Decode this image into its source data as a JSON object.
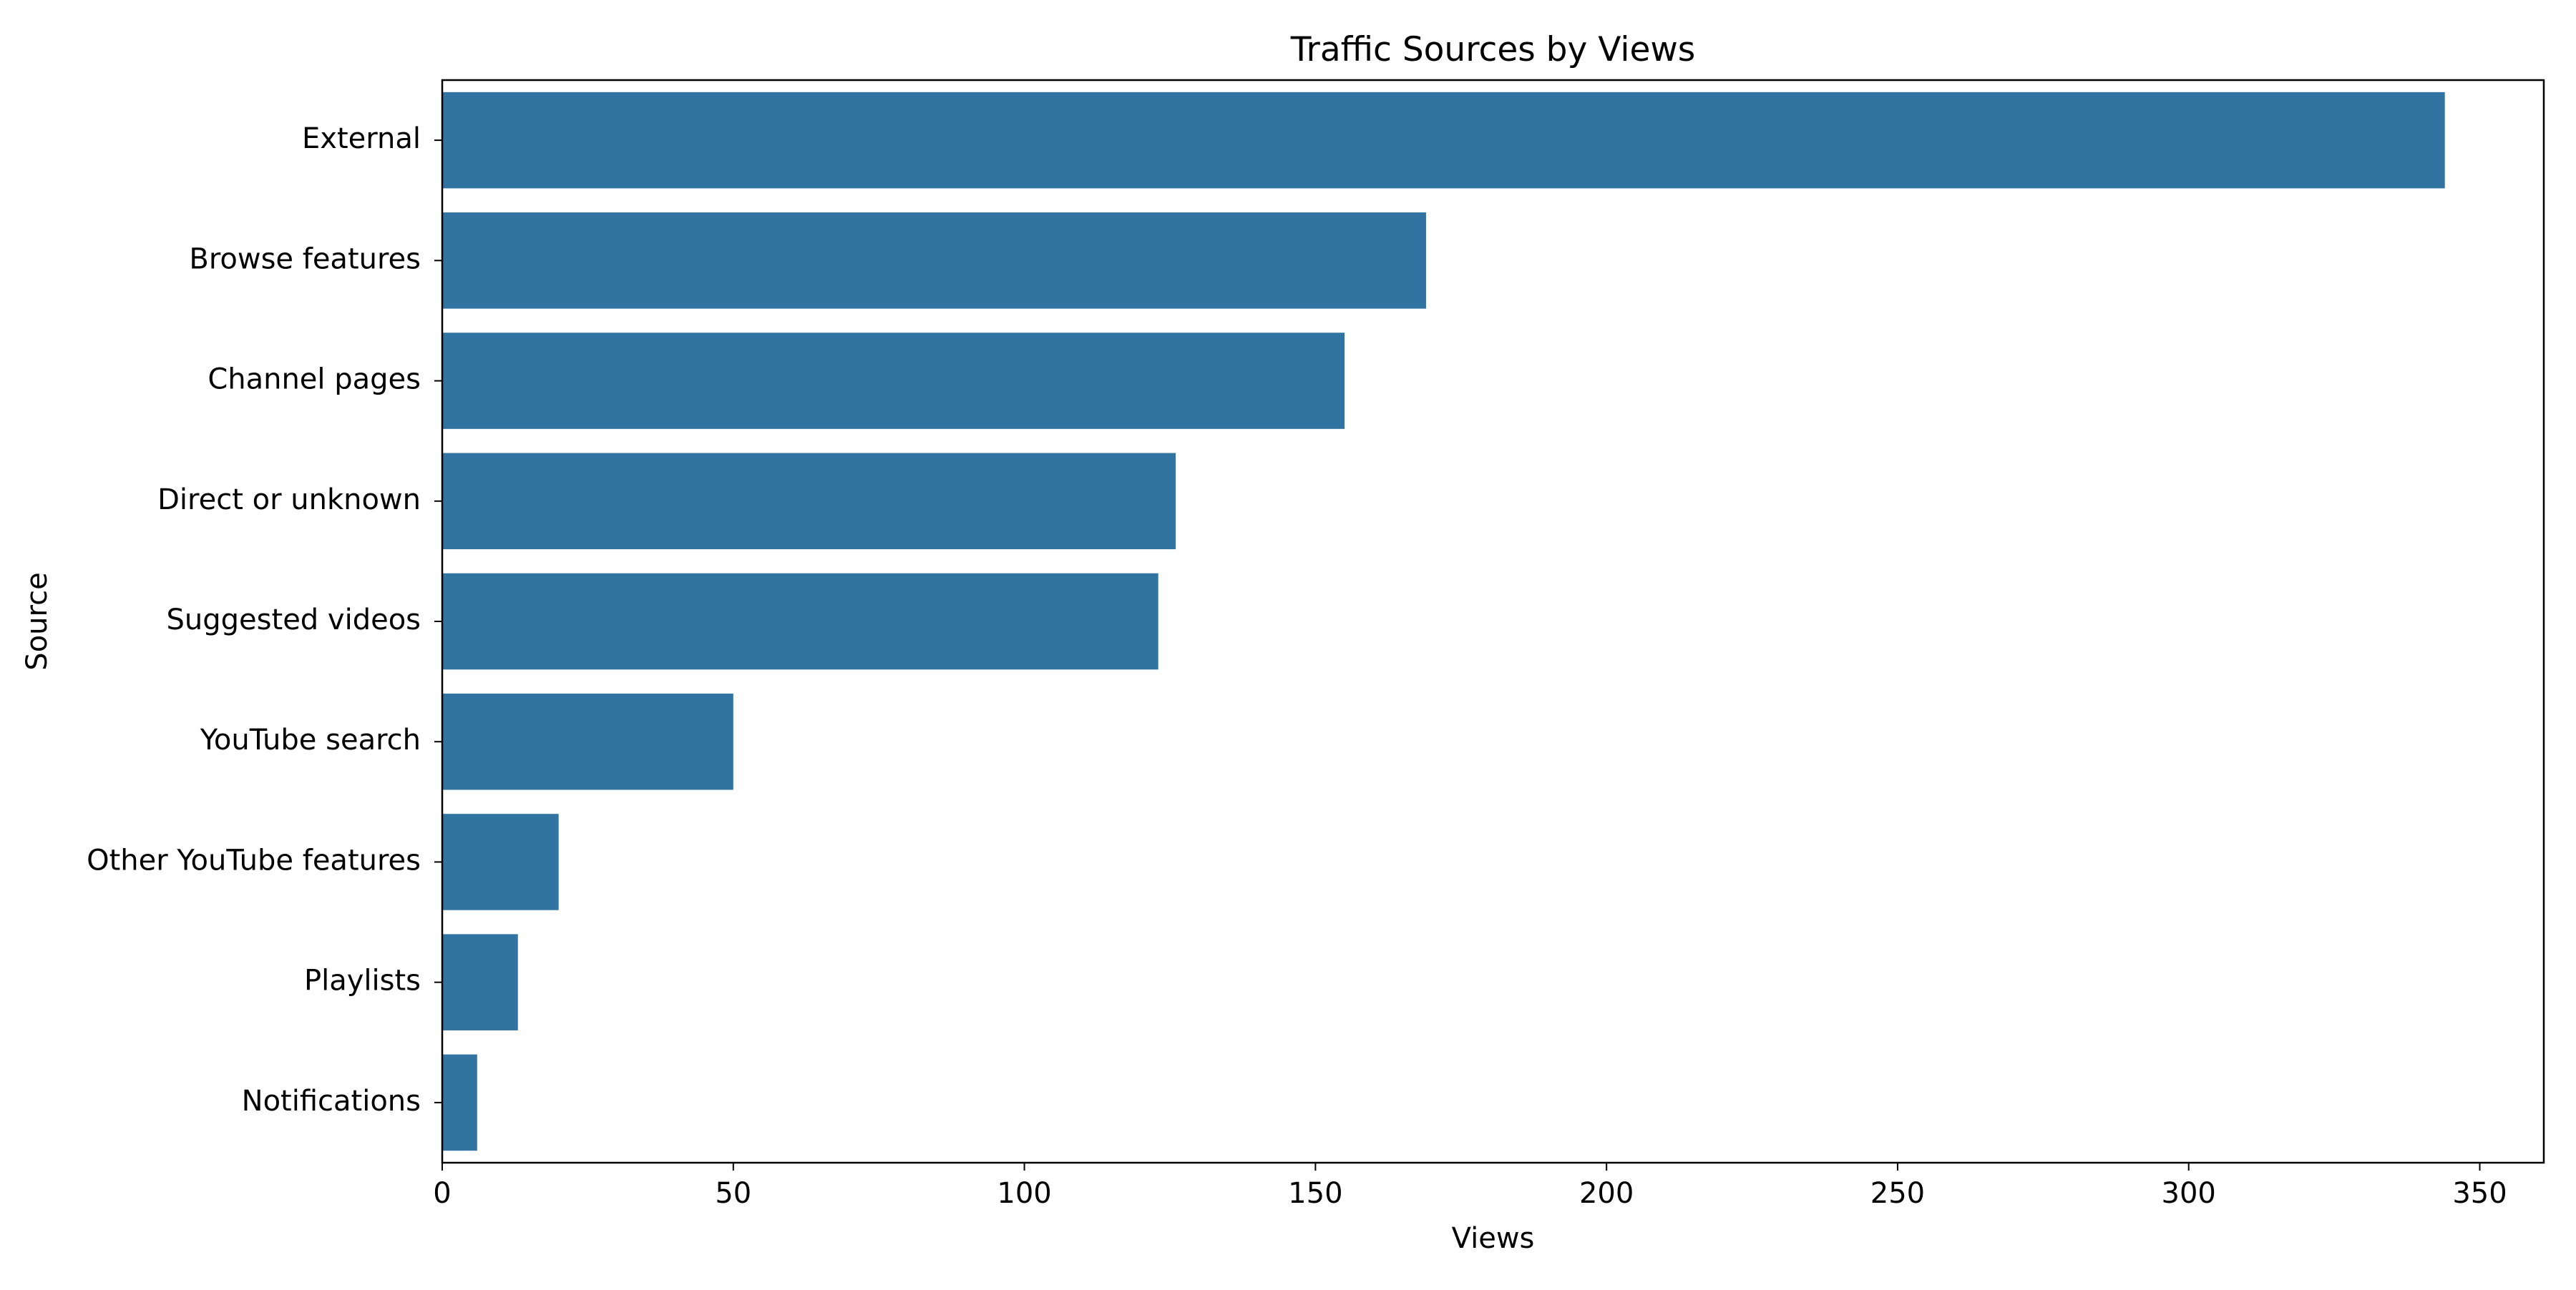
{
  "chart_data": {
    "type": "bar",
    "orientation": "horizontal",
    "title": "Traffic Sources by Views",
    "xlabel": "Views",
    "ylabel": "Source",
    "categories": [
      "External",
      "Browse features",
      "Channel pages",
      "Direct or unknown",
      "Suggested videos",
      "YouTube search",
      "Other YouTube features",
      "Playlists",
      "Notifications"
    ],
    "values": [
      344,
      169,
      155,
      126,
      123,
      50,
      20,
      13,
      6
    ],
    "xlim": [
      0,
      361
    ],
    "xticks": [
      0,
      50,
      100,
      150,
      200,
      250,
      300,
      350
    ],
    "grid": false,
    "legend": "none",
    "bar_color": "#3274a1"
  }
}
